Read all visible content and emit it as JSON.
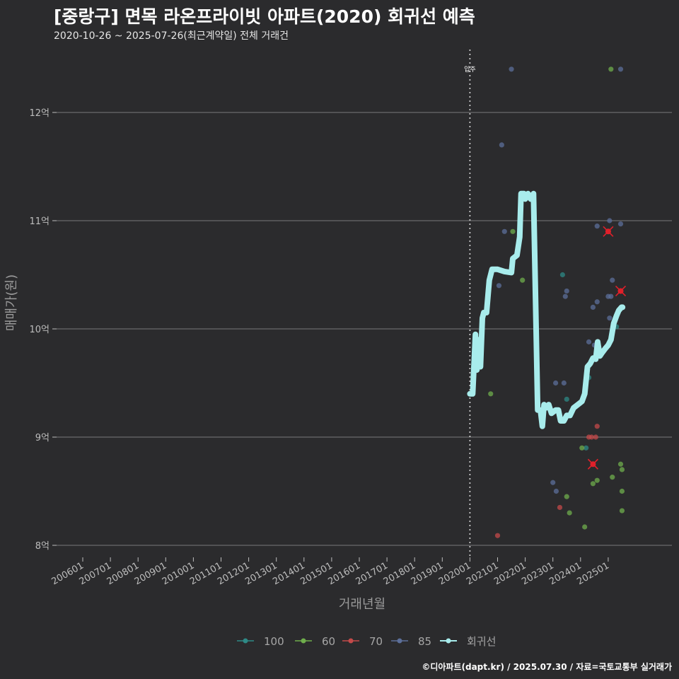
{
  "title": "[중랑구] 면목 라온프라이빗 아파트(2020) 회귀선 예측",
  "subtitle": "2020-10-26 ~ 2025-07-26(최근계약일) 전체 거래건",
  "credit": "©디아파트(dapt.kr) / 2025.07.30 / 자료=국토교통부 실거래가",
  "colors": {
    "background": "#2b2b2d",
    "gridline": "#7a7a7a",
    "s100": "#2e8a86",
    "s60": "#6fae4c",
    "s70": "#c44a4a",
    "s85": "#5c6f9a",
    "regression": "#a8ecec",
    "marker": "#e0202a"
  },
  "chart_data": {
    "type": "scatter",
    "title": "[중랑구] 면목 라온프라이빗 아파트(2020) 회귀선 예측",
    "xlabel": "거래년월",
    "ylabel": "매매가(원)",
    "ylim": [
      7.9,
      12.6
    ],
    "xlim": [
      2004.4,
      2026.2
    ],
    "yticks": [
      {
        "value": 8,
        "label": "8억"
      },
      {
        "value": 9,
        "label": "9억"
      },
      {
        "value": 10,
        "label": "10억"
      },
      {
        "value": 11,
        "label": "11억"
      },
      {
        "value": 12,
        "label": "12억"
      }
    ],
    "xticks": [
      {
        "value": 2006.0,
        "label": "200601"
      },
      {
        "value": 2007.0,
        "label": "200701"
      },
      {
        "value": 2008.0,
        "label": "200801"
      },
      {
        "value": 2009.0,
        "label": "200901"
      },
      {
        "value": 2010.0,
        "label": "201001"
      },
      {
        "value": 2011.0,
        "label": "201101"
      },
      {
        "value": 2012.0,
        "label": "201201"
      },
      {
        "value": 2013.0,
        "label": "201301"
      },
      {
        "value": 2014.0,
        "label": "201401"
      },
      {
        "value": 2015.0,
        "label": "201501"
      },
      {
        "value": 2016.0,
        "label": "201601"
      },
      {
        "value": 2017.0,
        "label": "201701"
      },
      {
        "value": 2018.0,
        "label": "201801"
      },
      {
        "value": 2019.0,
        "label": "201901"
      },
      {
        "value": 2020.0,
        "label": "202001"
      },
      {
        "value": 2021.0,
        "label": "202101"
      },
      {
        "value": 2022.0,
        "label": "202201"
      },
      {
        "value": 2023.0,
        "label": "202301"
      },
      {
        "value": 2024.0,
        "label": "202401"
      },
      {
        "value": 2025.0,
        "label": "202501"
      }
    ],
    "annotation": {
      "x": 2020.0,
      "label": "입주"
    },
    "legend": {
      "position": "bottom",
      "items": [
        {
          "name": "100",
          "color": "#2e8a86"
        },
        {
          "name": "60",
          "color": "#6fae4c"
        },
        {
          "name": "70",
          "color": "#c44a4a"
        },
        {
          "name": "85",
          "color": "#5c6f9a"
        },
        {
          "name": "회귀선",
          "color": "#a8ecec"
        }
      ]
    },
    "series": [
      {
        "name": "100",
        "points": [
          [
            2023.35,
            10.5
          ],
          [
            2023.5,
            9.35
          ],
          [
            2024.2,
            8.9
          ],
          [
            2024.3,
            9.55
          ],
          [
            2025.3,
            10.02
          ]
        ]
      },
      {
        "name": "60",
        "points": [
          [
            2020.75,
            9.4
          ],
          [
            2021.55,
            10.9
          ],
          [
            2021.9,
            10.45
          ],
          [
            2023.5,
            8.45
          ],
          [
            2023.6,
            8.3
          ],
          [
            2024.05,
            8.9
          ],
          [
            2024.15,
            8.17
          ],
          [
            2024.45,
            8.57
          ],
          [
            2024.6,
            8.6
          ],
          [
            2025.15,
            8.63
          ],
          [
            2025.45,
            8.75
          ],
          [
            2025.5,
            8.7
          ],
          [
            2025.5,
            8.5
          ],
          [
            2025.5,
            8.32
          ],
          [
            2025.1,
            12.4
          ]
        ]
      },
      {
        "name": "70",
        "points": [
          [
            2021.0,
            8.09
          ],
          [
            2023.25,
            8.35
          ],
          [
            2024.3,
            9.0
          ],
          [
            2024.4,
            9.0
          ],
          [
            2024.55,
            9.0
          ],
          [
            2024.6,
            9.1
          ],
          [
            2024.45,
            8.75
          ],
          [
            2025.0,
            10.9
          ],
          [
            2025.45,
            10.35
          ]
        ]
      },
      {
        "name": "85",
        "points": [
          [
            2021.05,
            10.4
          ],
          [
            2021.15,
            11.7
          ],
          [
            2021.25,
            10.9
          ],
          [
            2021.5,
            12.4
          ],
          [
            2023.0,
            8.58
          ],
          [
            2023.1,
            9.5
          ],
          [
            2023.12,
            8.5
          ],
          [
            2023.4,
            9.5
          ],
          [
            2023.45,
            10.3
          ],
          [
            2023.5,
            10.35
          ],
          [
            2024.3,
            9.88
          ],
          [
            2024.45,
            10.2
          ],
          [
            2024.5,
            9.85
          ],
          [
            2024.6,
            10.25
          ],
          [
            2024.6,
            10.95
          ],
          [
            2025.0,
            10.3
          ],
          [
            2025.05,
            10.1
          ],
          [
            2025.1,
            10.3
          ],
          [
            2025.05,
            11.0
          ],
          [
            2025.15,
            10.45
          ],
          [
            2025.45,
            10.97
          ],
          [
            2025.45,
            12.4
          ]
        ]
      }
    ],
    "markers": [
      [
        2024.45,
        8.75
      ],
      [
        2025.0,
        10.9
      ],
      [
        2025.45,
        10.35
      ]
    ],
    "regression": [
      [
        2020.0,
        9.4
      ],
      [
        2020.1,
        9.4
      ],
      [
        2020.2,
        9.95
      ],
      [
        2020.25,
        9.62
      ],
      [
        2020.3,
        9.9
      ],
      [
        2020.38,
        9.65
      ],
      [
        2020.45,
        10.1
      ],
      [
        2020.5,
        10.15
      ],
      [
        2020.6,
        10.15
      ],
      [
        2020.7,
        10.45
      ],
      [
        2020.8,
        10.55
      ],
      [
        2021.0,
        10.55
      ],
      [
        2021.25,
        10.53
      ],
      [
        2021.5,
        10.52
      ],
      [
        2021.55,
        10.65
      ],
      [
        2021.7,
        10.68
      ],
      [
        2021.8,
        10.85
      ],
      [
        2021.85,
        11.25
      ],
      [
        2021.95,
        11.25
      ],
      [
        2022.0,
        11.2
      ],
      [
        2022.1,
        11.25
      ],
      [
        2022.2,
        11.2
      ],
      [
        2022.3,
        11.25
      ],
      [
        2022.45,
        9.25
      ],
      [
        2022.55,
        9.25
      ],
      [
        2022.62,
        9.1
      ],
      [
        2022.68,
        9.3
      ],
      [
        2022.75,
        9.27
      ],
      [
        2022.85,
        9.3
      ],
      [
        2022.95,
        9.22
      ],
      [
        2023.1,
        9.25
      ],
      [
        2023.2,
        9.25
      ],
      [
        2023.28,
        9.15
      ],
      [
        2023.4,
        9.15
      ],
      [
        2023.5,
        9.2
      ],
      [
        2023.62,
        9.2
      ],
      [
        2023.75,
        9.27
      ],
      [
        2023.9,
        9.3
      ],
      [
        2024.05,
        9.33
      ],
      [
        2024.15,
        9.4
      ],
      [
        2024.25,
        9.65
      ],
      [
        2024.35,
        9.68
      ],
      [
        2024.45,
        9.73
      ],
      [
        2024.55,
        9.72
      ],
      [
        2024.62,
        9.88
      ],
      [
        2024.7,
        9.75
      ],
      [
        2024.78,
        9.78
      ],
      [
        2024.9,
        9.82
      ],
      [
        2025.0,
        9.85
      ],
      [
        2025.1,
        9.9
      ],
      [
        2025.2,
        10.05
      ],
      [
        2025.3,
        10.12
      ],
      [
        2025.38,
        10.17
      ],
      [
        2025.48,
        10.2
      ],
      [
        2025.52,
        10.2
      ]
    ]
  }
}
